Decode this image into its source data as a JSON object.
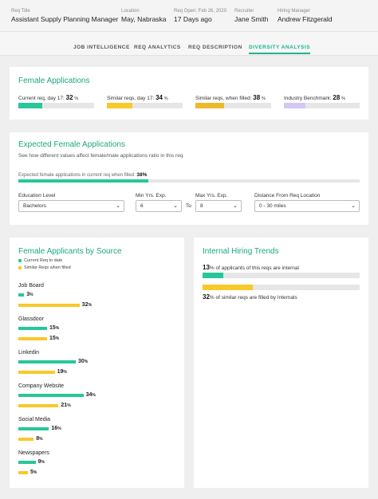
{
  "header": {
    "req_title_label": "Req Title",
    "req_title": "Assistant Supply Planning Manager",
    "location_label": "Location",
    "location": "May, Nabraska",
    "req_open_label": "Req Open: Feb 26, 2020",
    "req_open": "17 Days ago",
    "recruiter_label": "Recruiter",
    "recruiter": "Jane Smith",
    "hiring_manager_label": "Hiring Manager",
    "hiring_manager": "Andrew Fitzgerald"
  },
  "tabs": [
    "JOB INTELLIGENCE",
    "REQ ANALYTICS",
    "REQ DESCRIPTION",
    "DIVERSITY ANALYSIS"
  ],
  "active_tab": "DIVERSITY ANALYSIS",
  "colors": {
    "accent": "#1db48e",
    "green": "#27c79a",
    "yellow": "#f9c82a",
    "gold": "#ecb92b",
    "lavender": "#d3c8f1",
    "track": "#e6e6e6"
  },
  "female_applications": {
    "title": "Female Applications",
    "metrics": [
      {
        "label": "Current req, day 17:",
        "value": "32",
        "unit": "%",
        "fraction": 0.32,
        "color": "#27c79a"
      },
      {
        "label": "Similar reqs, day 17:",
        "value": "34",
        "unit": "%",
        "fraction": 0.34,
        "color": "#f9c82a"
      },
      {
        "label": "Similar reqs, when filled:",
        "value": "38",
        "unit": "%",
        "fraction": 0.38,
        "color": "#ecb92b"
      },
      {
        "label": "Industry Benchmark:",
        "value": "28",
        "unit": "%",
        "fraction": 0.28,
        "color": "#d3c8f1"
      }
    ]
  },
  "expected": {
    "title": "Expected Female Applications",
    "subtitle": "See how different values affect female/male applications ratio in this req",
    "bar_label": "Expected female applications in current req when filled:",
    "bar_value": "38%",
    "bar_fraction": 0.38,
    "education_label": "Education Level",
    "education_value": "Bachelors",
    "min_label": "Min Yrs. Exp.",
    "min_value": "6",
    "to_label": "To",
    "max_label": "Max Yrs. Exp.",
    "max_value": "8",
    "distance_label": "Distance From Req Location",
    "distance_value": "0 - 30 miles"
  },
  "by_source": {
    "title": "Female Applicants by Source",
    "legend": [
      {
        "label": "Current Req to date",
        "color": "#27c79a"
      },
      {
        "label": "Similar Reqs when filled",
        "color": "#f9c82a"
      }
    ],
    "sources": [
      {
        "name": "Job Board",
        "current": 3,
        "similar": 32
      },
      {
        "name": "Glassdoor",
        "current": 15,
        "similar": 15
      },
      {
        "name": "Linkedin",
        "current": 30,
        "similar": 19
      },
      {
        "name": "Company Website",
        "current": 34,
        "similar": 21
      },
      {
        "name": "Social Media",
        "current": 16,
        "similar": 8
      },
      {
        "name": "Newspapers",
        "current": 9,
        "similar": 5
      }
    ],
    "unit": "%"
  },
  "internal": {
    "title": "Internal Hiring Trends",
    "row1_value": "13",
    "row1_text": "% of applicants of this reqs are internal",
    "row1_fraction": 0.13,
    "row2_value": "32",
    "row2_text": "% of similar reqs are filled by Internals",
    "row2_fraction": 0.32
  }
}
